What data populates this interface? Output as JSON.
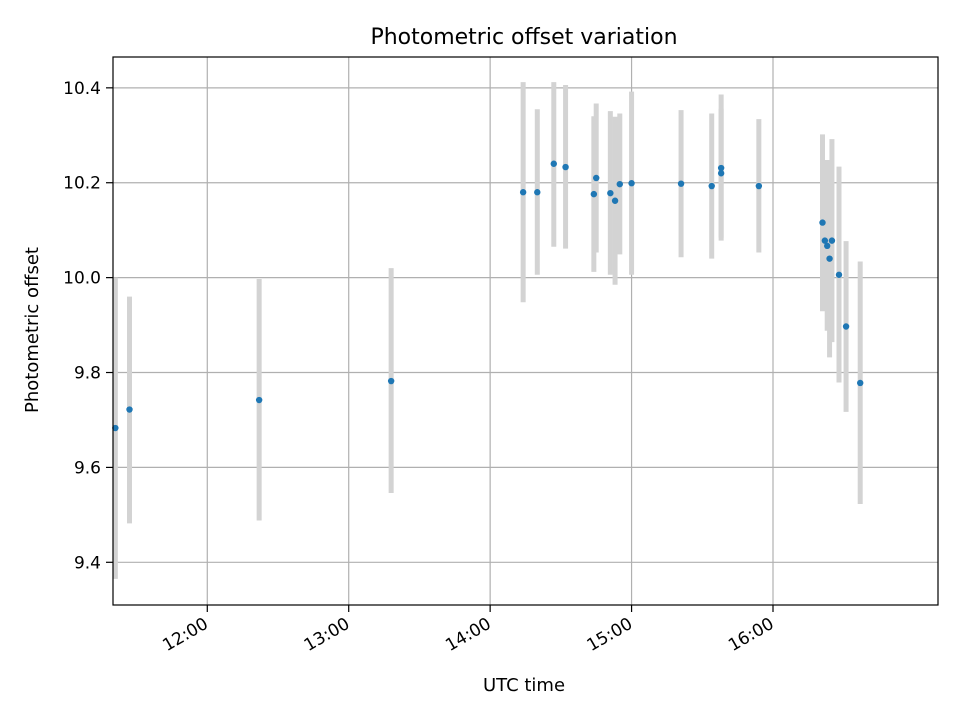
{
  "chart_data": {
    "type": "scatter",
    "title": "Photometric offset variation",
    "xlabel": "UTC time",
    "ylabel": "Photometric offset",
    "x_axis_type": "time",
    "xlim": [
      "11:20",
      "17:10"
    ],
    "ylim": [
      9.31,
      10.465
    ],
    "xticks": [
      "12:00",
      "13:00",
      "14:00",
      "15:00",
      "16:00"
    ],
    "yticks": [
      9.4,
      9.6,
      9.8,
      10.0,
      10.2,
      10.4
    ],
    "grid": true,
    "colors": {
      "point": "#1f77b4",
      "errorbar": "#d3d3d3",
      "grid": "#b0b0b0"
    },
    "series": [
      {
        "points": [
          {
            "x": "11:21",
            "y": 9.683,
            "ylow": 9.365,
            "yhigh": 10.0
          },
          {
            "x": "11:27",
            "y": 9.722,
            "ylow": 9.482,
            "yhigh": 9.96
          },
          {
            "x": "12:22",
            "y": 9.742,
            "ylow": 9.488,
            "yhigh": 9.997
          },
          {
            "x": "13:18",
            "y": 9.782,
            "ylow": 9.546,
            "yhigh": 10.02
          },
          {
            "x": "14:14",
            "y": 10.18,
            "ylow": 9.948,
            "yhigh": 10.412
          },
          {
            "x": "14:20",
            "y": 10.18,
            "ylow": 10.006,
            "yhigh": 10.355
          },
          {
            "x": "14:27",
            "y": 10.24,
            "ylow": 10.065,
            "yhigh": 10.412
          },
          {
            "x": "14:32",
            "y": 10.233,
            "ylow": 10.061,
            "yhigh": 10.406
          },
          {
            "x": "14:44",
            "y": 10.176,
            "ylow": 10.012,
            "yhigh": 10.34
          },
          {
            "x": "14:45",
            "y": 10.21,
            "ylow": 10.053,
            "yhigh": 10.367
          },
          {
            "x": "14:51",
            "y": 10.178,
            "ylow": 10.006,
            "yhigh": 10.351
          },
          {
            "x": "14:53",
            "y": 10.162,
            "ylow": 9.985,
            "yhigh": 10.339
          },
          {
            "x": "14:55",
            "y": 10.197,
            "ylow": 10.049,
            "yhigh": 10.346
          },
          {
            "x": "15:00",
            "y": 10.199,
            "ylow": 10.006,
            "yhigh": 10.392
          },
          {
            "x": "15:21",
            "y": 10.198,
            "ylow": 10.043,
            "yhigh": 10.353
          },
          {
            "x": "15:34",
            "y": 10.193,
            "ylow": 10.04,
            "yhigh": 10.346
          },
          {
            "x": "15:38",
            "y": 10.22,
            "ylow": 10.084,
            "yhigh": 10.356
          },
          {
            "x": "15:38",
            "y": 10.231,
            "ylow": 10.078,
            "yhigh": 10.386
          },
          {
            "x": "15:54",
            "y": 10.193,
            "ylow": 10.053,
            "yhigh": 10.334
          },
          {
            "x": "16:21",
            "y": 10.116,
            "ylow": 9.929,
            "yhigh": 10.302
          },
          {
            "x": "16:22",
            "y": 10.078,
            "ylow": 9.937,
            "yhigh": 10.218
          },
          {
            "x": "16:23",
            "y": 10.067,
            "ylow": 9.888,
            "yhigh": 10.248
          },
          {
            "x": "16:24",
            "y": 10.04,
            "ylow": 9.832,
            "yhigh": 10.246
          },
          {
            "x": "16:25",
            "y": 10.078,
            "ylow": 9.864,
            "yhigh": 10.292
          },
          {
            "x": "16:28",
            "y": 10.006,
            "ylow": 9.779,
            "yhigh": 10.234
          },
          {
            "x": "16:31",
            "y": 9.897,
            "ylow": 9.717,
            "yhigh": 10.077
          },
          {
            "x": "16:37",
            "y": 9.778,
            "ylow": 9.523,
            "yhigh": 10.034
          }
        ]
      }
    ]
  }
}
